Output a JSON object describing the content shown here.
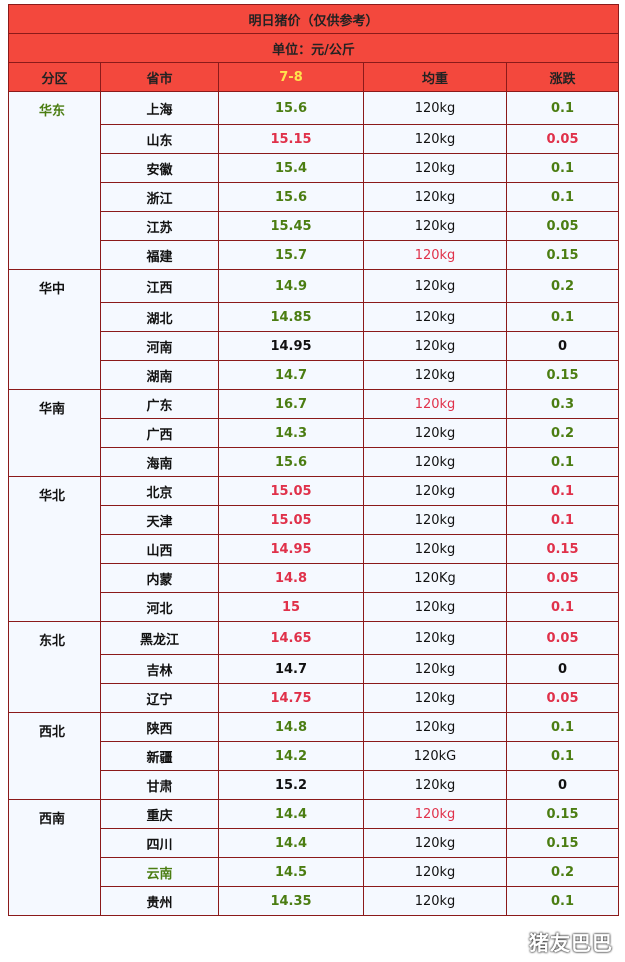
{
  "title": "明日猪价（仅供参考）",
  "unit": "单位：元/公斤",
  "columns": {
    "region": "分区",
    "province": "省市",
    "date": "7-8",
    "weight": "均重",
    "change": "涨跌"
  },
  "colors": {
    "green": "#4b7d12",
    "red": "#e0314a",
    "header_bg": "#f3483d",
    "border": "#8b1a1a"
  },
  "watermark": "猪友巴巴",
  "regions": [
    {
      "name": "华东",
      "name_color": "green",
      "rows": [
        {
          "prov": "上海",
          "price": "15.6",
          "pc": "green",
          "weight": "120kg",
          "wc": "black",
          "chg": "0.1",
          "cc": "green"
        },
        {
          "prov": "山东",
          "price": "15.15",
          "pc": "red",
          "weight": "120kg",
          "wc": "black",
          "chg": "0.05",
          "cc": "red"
        },
        {
          "prov": "安徽",
          "price": "15.4",
          "pc": "green",
          "weight": "120kg",
          "wc": "black",
          "chg": "0.1",
          "cc": "green"
        },
        {
          "prov": "浙江",
          "price": "15.6",
          "pc": "green",
          "weight": "120kg",
          "wc": "black",
          "chg": "0.1",
          "cc": "green"
        },
        {
          "prov": "江苏",
          "price": "15.45",
          "pc": "green",
          "weight": "120kg",
          "wc": "black",
          "chg": "0.05",
          "cc": "green"
        },
        {
          "prov": "福建",
          "price": "15.7",
          "pc": "green",
          "weight": "120kg",
          "wc": "red",
          "chg": "0.15",
          "cc": "green"
        }
      ]
    },
    {
      "name": "华中",
      "name_color": "black",
      "rows": [
        {
          "prov": "江西",
          "price": "14.9",
          "pc": "green",
          "weight": "120kg",
          "wc": "black",
          "chg": "0.2",
          "cc": "green"
        },
        {
          "prov": "湖北",
          "price": "14.85",
          "pc": "green",
          "weight": "120kg",
          "wc": "black",
          "chg": "0.1",
          "cc": "green"
        },
        {
          "prov": "河南",
          "price": "14.95",
          "pc": "black",
          "weight": "120kg",
          "wc": "black",
          "chg": "0",
          "cc": "black"
        },
        {
          "prov": "湖南",
          "price": "14.7",
          "pc": "green",
          "weight": "120kg",
          "wc": "black",
          "chg": "0.15",
          "cc": "green"
        }
      ]
    },
    {
      "name": "华南",
      "name_color": "black",
      "rows": [
        {
          "prov": "广东",
          "price": "16.7",
          "pc": "green",
          "weight": "120kg",
          "wc": "red",
          "chg": "0.3",
          "cc": "green"
        },
        {
          "prov": "广西",
          "price": "14.3",
          "pc": "green",
          "weight": "120kg",
          "wc": "black",
          "chg": "0.2",
          "cc": "green"
        },
        {
          "prov": "海南",
          "price": "15.6",
          "pc": "green",
          "weight": "120kg",
          "wc": "black",
          "chg": "0.1",
          "cc": "green"
        }
      ]
    },
    {
      "name": "华北",
      "name_color": "black",
      "rows": [
        {
          "prov": "北京",
          "price": "15.05",
          "pc": "red",
          "weight": "120kg",
          "wc": "black",
          "chg": "0.1",
          "cc": "red"
        },
        {
          "prov": "天津",
          "price": "15.05",
          "pc": "red",
          "weight": "120kg",
          "wc": "black",
          "chg": "0.1",
          "cc": "red"
        },
        {
          "prov": "山西",
          "price": "14.95",
          "pc": "red",
          "weight": "120kg",
          "wc": "black",
          "chg": "0.15",
          "cc": "red"
        },
        {
          "prov": "内蒙",
          "price": "14.8",
          "pc": "red",
          "weight": "120Kg",
          "wc": "black",
          "chg": "0.05",
          "cc": "red"
        },
        {
          "prov": "河北",
          "price": "15",
          "pc": "red",
          "weight": "120kg",
          "wc": "black",
          "chg": "0.1",
          "cc": "red"
        }
      ]
    },
    {
      "name": "东北",
      "name_color": "black",
      "rows": [
        {
          "prov": "黑龙江",
          "price": "14.65",
          "pc": "red",
          "weight": "120kg",
          "wc": "black",
          "chg": "0.05",
          "cc": "red"
        },
        {
          "prov": "吉林",
          "price": "14.7",
          "pc": "black",
          "weight": "120kg",
          "wc": "black",
          "chg": "0",
          "cc": "black"
        },
        {
          "prov": "辽宁",
          "price": "14.75",
          "pc": "red",
          "weight": "120kg",
          "wc": "black",
          "chg": "0.05",
          "cc": "red"
        }
      ]
    },
    {
      "name": "西北",
      "name_color": "black",
      "rows": [
        {
          "prov": "陕西",
          "price": "14.8",
          "pc": "green",
          "weight": "120kg",
          "wc": "black",
          "chg": "0.1",
          "cc": "green"
        },
        {
          "prov": "新疆",
          "price": "14.2",
          "pc": "green",
          "weight": "120kG",
          "wc": "black",
          "chg": "0.1",
          "cc": "green"
        },
        {
          "prov": "甘肃",
          "price": "15.2",
          "pc": "black",
          "weight": "120kg",
          "wc": "black",
          "chg": "0",
          "cc": "black"
        }
      ]
    },
    {
      "name": "西南",
      "name_color": "black",
      "rows": [
        {
          "prov": "重庆",
          "price": "14.4",
          "pc": "green",
          "weight": "120kg",
          "wc": "red",
          "chg": "0.15",
          "cc": "green"
        },
        {
          "prov": "四川",
          "price": "14.4",
          "pc": "green",
          "weight": "120kg",
          "wc": "black",
          "chg": "0.15",
          "cc": "green"
        },
        {
          "prov": "云南",
          "price": "14.5",
          "pc": "green",
          "weight": "120kg",
          "wc": "black",
          "chg": "0.2",
          "cc": "green",
          "prov_color": "green"
        },
        {
          "prov": "贵州",
          "price": "14.35",
          "pc": "green",
          "weight": "120kg",
          "wc": "black",
          "chg": "0.1",
          "cc": "green"
        }
      ]
    }
  ]
}
